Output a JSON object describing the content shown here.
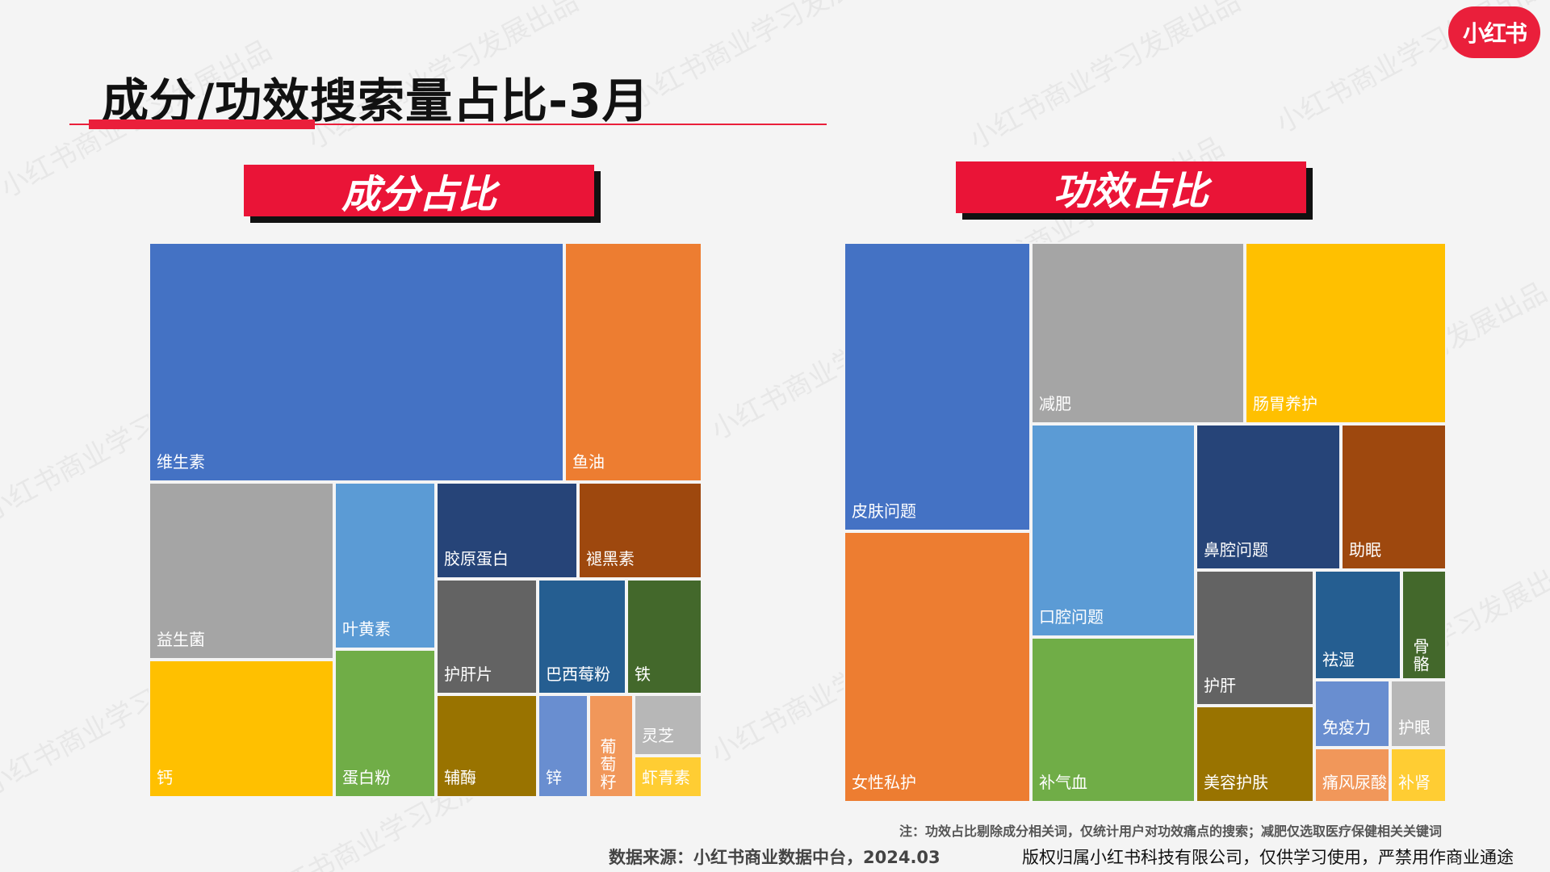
{
  "logo_text": "小红书",
  "title": "成分/功效搜索量占比-3月",
  "watermark_text": "小红书商业学习发展出品",
  "chart_data": [
    {
      "type": "treemap",
      "title": "成分占比",
      "cells": [
        {
          "label": "维生素",
          "color": "#4472c4"
        },
        {
          "label": "鱼油",
          "color": "#ed7d31"
        },
        {
          "label": "益生菌",
          "color": "#a5a5a5"
        },
        {
          "label": "叶黄素",
          "color": "#5b9bd5"
        },
        {
          "label": "胶原蛋白",
          "color": "#264478"
        },
        {
          "label": "褪黑素",
          "color": "#9e480e"
        },
        {
          "label": "护肝片",
          "color": "#636363"
        },
        {
          "label": "巴西莓粉",
          "color": "#255e91"
        },
        {
          "label": "铁",
          "color": "#43682b"
        },
        {
          "label": "钙",
          "color": "#ffc000"
        },
        {
          "label": "蛋白粉",
          "color": "#70ad47"
        },
        {
          "label": "辅酶",
          "color": "#997300"
        },
        {
          "label": "锌",
          "color": "#698ed0"
        },
        {
          "label": "葡萄籽",
          "color": "#f1975a"
        },
        {
          "label": "灵芝",
          "color": "#b7b7b7"
        },
        {
          "label": "虾青素",
          "color": "#ffcd33"
        }
      ]
    },
    {
      "type": "treemap",
      "title": "功效占比",
      "cells": [
        {
          "label": "皮肤问题",
          "color": "#4472c4"
        },
        {
          "label": "减肥",
          "color": "#a5a5a5"
        },
        {
          "label": "肠胃养护",
          "color": "#ffc000"
        },
        {
          "label": "女性私护",
          "color": "#ed7d31"
        },
        {
          "label": "口腔问题",
          "color": "#5b9bd5"
        },
        {
          "label": "鼻腔问题",
          "color": "#264478"
        },
        {
          "label": "助眠",
          "color": "#9e480e"
        },
        {
          "label": "补气血",
          "color": "#70ad47"
        },
        {
          "label": "护肝",
          "color": "#636363"
        },
        {
          "label": "祛湿",
          "color": "#255e91"
        },
        {
          "label": "骨骼",
          "color": "#43682b"
        },
        {
          "label": "免疫力",
          "color": "#698ed0"
        },
        {
          "label": "护眼",
          "color": "#b7b7b7"
        },
        {
          "label": "美容护肤",
          "color": "#997300"
        },
        {
          "label": "痛风尿酸",
          "color": "#f1975a"
        },
        {
          "label": "补肾",
          "color": "#ffcd33"
        }
      ]
    }
  ],
  "footnote": "注：功效占比剔除成分相关词，仅统计用户对功效痛点的搜索；减肥仅选取医疗保健相关关键词",
  "data_source": "数据来源：小红书商业数据中台，2024.03",
  "copyright": "版权归属小红书科技有限公司，仅供学习使用，严禁用作商业通途"
}
